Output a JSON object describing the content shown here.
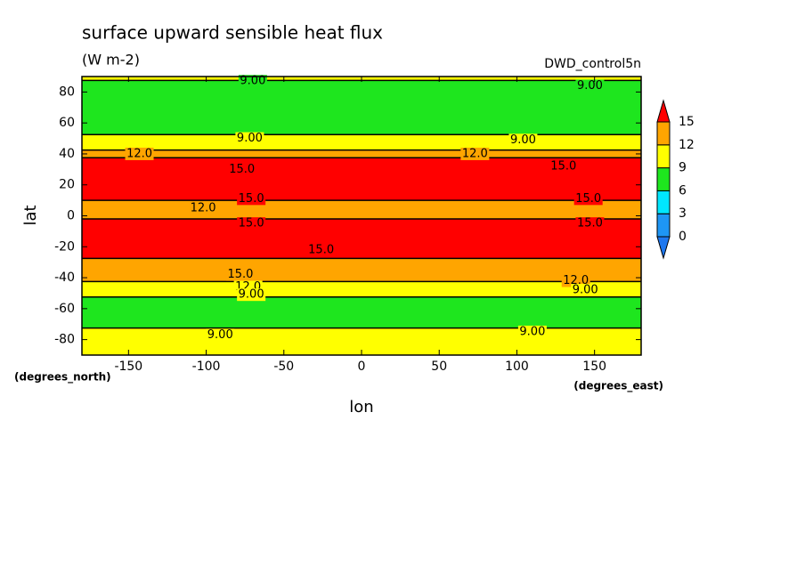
{
  "chart_data": {
    "type": "contour",
    "title": "surface upward sensible heat flux",
    "subtitle": "(W m-2)",
    "dataset": "DWD_control5n",
    "xlabel": "lon",
    "ylabel": "lat",
    "xunits": "(degrees_east)",
    "yunits": "(degrees_north)",
    "xlim": [
      -180,
      180
    ],
    "ylim": [
      -90,
      90
    ],
    "xticks": [
      -150,
      -100,
      -50,
      0,
      50,
      100,
      150
    ],
    "yticks": [
      -80,
      -60,
      -40,
      -20,
      0,
      20,
      40,
      60,
      80
    ],
    "levels": [
      0,
      3,
      6,
      9,
      12,
      15
    ],
    "colors": [
      "#1e78f0",
      "#1e96f5",
      "#00e6ff",
      "#1ee61e",
      "#ffff00",
      "#ffa500",
      "#ff0000"
    ],
    "lat": [
      90,
      85,
      80,
      70,
      60,
      55,
      50,
      45,
      40,
      35,
      30,
      20,
      12,
      8,
      4,
      0,
      -4,
      -10,
      -20,
      -25,
      -30,
      -40,
      -45,
      -50,
      -55,
      -60,
      -70,
      -75,
      -80,
      -90
    ],
    "values": [
      10,
      8,
      7.5,
      7,
      7.5,
      8.5,
      9.5,
      11,
      13,
      15.5,
      16,
      16,
      15.2,
      13.5,
      12.5,
      13.5,
      15.2,
      16,
      16,
      15.5,
      14,
      13,
      11,
      9.5,
      8,
      7,
      7.5,
      10,
      10.5,
      10.5
    ],
    "contour_labels": [
      {
        "text": "9.00",
        "lon": -70,
        "lat": 87
      },
      {
        "text": "9.00",
        "lon": 147,
        "lat": 84
      },
      {
        "text": "9.00",
        "lon": -72,
        "lat": 50
      },
      {
        "text": "9.00",
        "lon": 104,
        "lat": 49
      },
      {
        "text": "12.0",
        "lon": -143,
        "lat": 40
      },
      {
        "text": "12.0",
        "lon": 73,
        "lat": 40
      },
      {
        "text": "15.0",
        "lon": -77,
        "lat": 30
      },
      {
        "text": "15.0",
        "lon": 130,
        "lat": 32
      },
      {
        "text": "15.0",
        "lon": -71,
        "lat": 11
      },
      {
        "text": "15.0",
        "lon": 146,
        "lat": 11
      },
      {
        "text": "12.0",
        "lon": -102,
        "lat": 5
      },
      {
        "text": "15.0",
        "lon": -71,
        "lat": -5
      },
      {
        "text": "15.0",
        "lon": 147,
        "lat": -5
      },
      {
        "text": "15.0",
        "lon": -26,
        "lat": -22
      },
      {
        "text": "15.0",
        "lon": -78,
        "lat": -38
      },
      {
        "text": "12.0",
        "lon": -73,
        "lat": -46
      },
      {
        "text": "9.00",
        "lon": -71,
        "lat": -51
      },
      {
        "text": "12.0",
        "lon": 138,
        "lat": -42
      },
      {
        "text": "9.00",
        "lon": 144,
        "lat": -48
      },
      {
        "text": "9.00",
        "lon": -91,
        "lat": -77
      },
      {
        "text": "9.00",
        "lon": 110,
        "lat": -75
      }
    ]
  }
}
